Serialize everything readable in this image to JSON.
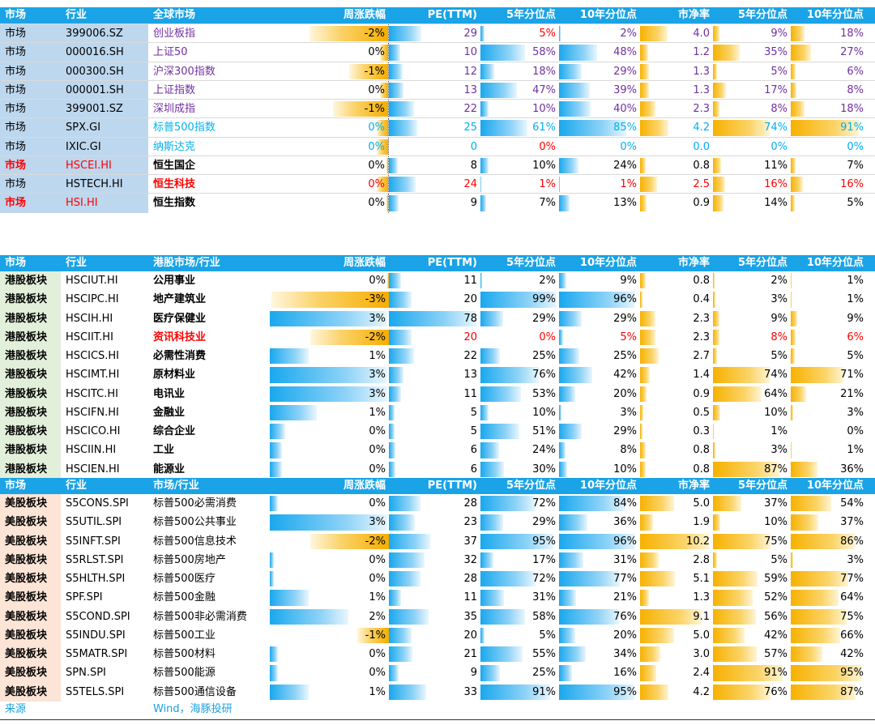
{
  "headers": [
    [
      "市场",
      "行业",
      "全球市场",
      "周涨跌幅",
      "PE(TTM)",
      "5年分位点",
      "10年分位点",
      "市净率",
      "5年分位点",
      "10年分位点"
    ],
    [
      "市场",
      "行业",
      "港股市场/行业",
      "周涨跌幅",
      "PE(TTM)",
      "5年分位点",
      "10年分位点",
      "市净率",
      "5年分位点",
      "10年分位点"
    ],
    [
      "市场",
      "行业",
      "市场/行业",
      "周涨跌幅",
      "PE(TTM)",
      "5年分位点",
      "10年分位点",
      "市净率",
      "5年分位点",
      "10年分位点"
    ]
  ],
  "colors": {
    "header_bg": "#1aa3e6",
    "market_col1_bg": "#bdd7ee",
    "hk_col1_bg": "#e2efda",
    "us_col1_bg": "#fce4d6",
    "purple_text": "#7030a0",
    "cyan_text": "#00b0f0",
    "red_text": "#ff0000",
    "bar_blue": "#19a8ee",
    "bar_yellow": "#f7b100"
  },
  "sections": [
    {
      "col1_bg": "#bdd7ee",
      "rows": [
        {
          "market": "市场",
          "code": "399006.SZ",
          "name": "创业板指",
          "style": "purple",
          "chg": "-2%",
          "chg_v": -2,
          "pe": "29",
          "pe_v": 29,
          "p5": "5%",
          "p5_v": 5,
          "p10": "2%",
          "p10_v": 2,
          "pb": "4.0",
          "pb_v": 4.0,
          "pb5": "9%",
          "pb5_v": 9,
          "pb10": "18%",
          "pb10_v": 18,
          "p5_red": true
        },
        {
          "market": "市场",
          "code": "000016.SH",
          "name": "上证50",
          "style": "purple",
          "chg": "0%",
          "chg_v": -0.2,
          "pe": "10",
          "pe_v": 10,
          "p5": "58%",
          "p5_v": 58,
          "p10": "48%",
          "p10_v": 48,
          "pb": "1.2",
          "pb_v": 1.2,
          "pb5": "35%",
          "pb5_v": 35,
          "pb10": "27%",
          "pb10_v": 27
        },
        {
          "market": "市场",
          "code": "000300.SH",
          "name": "沪深300指数",
          "style": "purple",
          "chg": "-1%",
          "chg_v": -1,
          "pe": "12",
          "pe_v": 12,
          "p5": "18%",
          "p5_v": 18,
          "p10": "29%",
          "p10_v": 29,
          "pb": "1.3",
          "pb_v": 1.3,
          "pb5": "5%",
          "pb5_v": 5,
          "pb10": "6%",
          "pb10_v": 6
        },
        {
          "market": "市场",
          "code": "000001.SH",
          "name": "上证指数",
          "style": "purple",
          "chg": "0%",
          "chg_v": -0.2,
          "pe": "13",
          "pe_v": 13,
          "p5": "47%",
          "p5_v": 47,
          "p10": "39%",
          "p10_v": 39,
          "pb": "1.3",
          "pb_v": 1.3,
          "pb5": "17%",
          "pb5_v": 17,
          "pb10": "8%",
          "pb10_v": 8
        },
        {
          "market": "市场",
          "code": "399001.SZ",
          "name": "深圳成指",
          "style": "purple",
          "chg": "-1%",
          "chg_v": -1.4,
          "pe": "22",
          "pe_v": 22,
          "p5": "10%",
          "p5_v": 10,
          "p10": "40%",
          "p10_v": 40,
          "pb": "2.3",
          "pb_v": 2.3,
          "pb5": "8%",
          "pb5_v": 8,
          "pb10": "18%",
          "pb10_v": 18
        },
        {
          "market": "市场",
          "code": "SPX.GI",
          "name": "标普500指数",
          "style": "cyan",
          "chg": "0%",
          "chg_v": -0.3,
          "pe": "25",
          "pe_v": 25,
          "p5": "61%",
          "p5_v": 61,
          "p10": "85%",
          "p10_v": 85,
          "pb": "4.2",
          "pb_v": 4.2,
          "pb5": "74%",
          "pb5_v": 74,
          "pb10": "91%",
          "pb10_v": 91
        },
        {
          "market": "市场",
          "code": "IXIC.GI",
          "name": "纳斯达克",
          "style": "cyan",
          "chg": "0%",
          "chg_v": -0.3,
          "pe": "0",
          "pe_v": 0,
          "p5": "0%",
          "p5_v": 0,
          "p10": "0%",
          "p10_v": 0,
          "pb": "0.0",
          "pb_v": 0,
          "pb5": "0%",
          "pb5_v": 0,
          "pb10": "0%",
          "pb10_v": 0,
          "p5_red": true
        },
        {
          "market": "市场",
          "code": "HSCEI.HI",
          "name": "恒生国企",
          "style": "black",
          "red_left": true,
          "chg": "0%",
          "chg_v": 0,
          "pe": "8",
          "pe_v": 8,
          "p5": "10%",
          "p5_v": 10,
          "p10": "24%",
          "p10_v": 24,
          "pb": "0.8",
          "pb_v": 0.8,
          "pb5": "11%",
          "pb5_v": 11,
          "pb10": "7%",
          "pb10_v": 7
        },
        {
          "market": "市场",
          "code": "HSTECH.HI",
          "name": "恒生科技",
          "style": "red",
          "chg": "0%",
          "chg_v": -0.3,
          "pe": "24",
          "pe_v": 24,
          "p5": "1%",
          "p5_v": 1,
          "p10": "1%",
          "p10_v": 1,
          "pb": "2.5",
          "pb_v": 2.5,
          "pb5": "16%",
          "pb5_v": 16,
          "pb10": "16%",
          "pb10_v": 16,
          "red_vals": true
        },
        {
          "market": "市场",
          "code": "HSI.HI",
          "name": "恒生指数",
          "style": "black",
          "red_left": true,
          "chg": "0%",
          "chg_v": 0,
          "pe": "9",
          "pe_v": 9,
          "p5": "7%",
          "p5_v": 7,
          "p10": "13%",
          "p10_v": 13,
          "pb": "0.9",
          "pb_v": 0.9,
          "pb5": "14%",
          "pb5_v": 14,
          "pb10": "5%",
          "pb10_v": 5
        }
      ]
    },
    {
      "col1_bg": "#e2efda",
      "rows": [
        {
          "market": "港股板块",
          "code": "HSCIUT.HI",
          "name": "公用事业",
          "style": "black",
          "chg": "0%",
          "chg_v": 0,
          "pe": "11",
          "pe_v": 11,
          "p5": "2%",
          "p5_v": 2,
          "p10": "9%",
          "p10_v": 9,
          "pb": "0.8",
          "pb_v": 0.8,
          "pb5": "2%",
          "pb5_v": 2,
          "pb10": "1%",
          "pb10_v": 1
        },
        {
          "market": "港股板块",
          "code": "HSCIPC.HI",
          "name": "地产建筑业",
          "style": "black",
          "chg": "-3%",
          "chg_v": -3,
          "pe": "20",
          "pe_v": 20,
          "p5": "99%",
          "p5_v": 99,
          "p10": "96%",
          "p10_v": 96,
          "pb": "0.4",
          "pb_v": 0.4,
          "pb5": "3%",
          "pb5_v": 3,
          "pb10": "1%",
          "pb10_v": 1
        },
        {
          "market": "港股板块",
          "code": "HSCIH.HI",
          "name": "医疗保健业",
          "style": "black",
          "chg": "3%",
          "chg_v": 3,
          "pe": "78",
          "pe_v": 78,
          "p5": "29%",
          "p5_v": 29,
          "p10": "29%",
          "p10_v": 29,
          "pb": "2.3",
          "pb_v": 2.3,
          "pb5": "9%",
          "pb5_v": 9,
          "pb10": "9%",
          "pb10_v": 9
        },
        {
          "market": "港股板块",
          "code": "HSCIIT.HI",
          "name": "资讯科技业",
          "style": "red",
          "chg": "-2%",
          "chg_v": -2,
          "pe": "20",
          "pe_v": 20,
          "p5": "0%",
          "p5_v": 0,
          "p10": "5%",
          "p10_v": 5,
          "pb": "2.3",
          "pb_v": 2.3,
          "pb5": "8%",
          "pb5_v": 8,
          "pb10": "6%",
          "pb10_v": 6,
          "red_vals": true
        },
        {
          "market": "港股板块",
          "code": "HSCICS.HI",
          "name": "必需性消费",
          "style": "black",
          "chg": "1%",
          "chg_v": 1,
          "pe": "22",
          "pe_v": 22,
          "p5": "25%",
          "p5_v": 25,
          "p10": "25%",
          "p10_v": 25,
          "pb": "2.7",
          "pb_v": 2.7,
          "pb5": "5%",
          "pb5_v": 5,
          "pb10": "5%",
          "pb10_v": 5
        },
        {
          "market": "港股板块",
          "code": "HSCIMT.HI",
          "name": "原材料业",
          "style": "black",
          "chg": "3%",
          "chg_v": 3,
          "pe": "13",
          "pe_v": 13,
          "p5": "76%",
          "p5_v": 76,
          "p10": "42%",
          "p10_v": 42,
          "pb": "1.4",
          "pb_v": 1.4,
          "pb5": "74%",
          "pb5_v": 74,
          "pb10": "71%",
          "pb10_v": 71
        },
        {
          "market": "港股板块",
          "code": "HSCITC.HI",
          "name": "电讯业",
          "style": "black",
          "chg": "3%",
          "chg_v": 3,
          "pe": "11",
          "pe_v": 11,
          "p5": "53%",
          "p5_v": 53,
          "p10": "20%",
          "p10_v": 20,
          "pb": "0.9",
          "pb_v": 0.9,
          "pb5": "64%",
          "pb5_v": 64,
          "pb10": "21%",
          "pb10_v": 21
        },
        {
          "market": "港股板块",
          "code": "HSCIFN.HI",
          "name": "金融业",
          "style": "black",
          "chg": "1%",
          "chg_v": 1.2,
          "pe": "5",
          "pe_v": 5,
          "p5": "10%",
          "p5_v": 10,
          "p10": "3%",
          "p10_v": 3,
          "pb": "0.5",
          "pb_v": 0.5,
          "pb5": "10%",
          "pb5_v": 10,
          "pb10": "3%",
          "pb10_v": 3
        },
        {
          "market": "港股板块",
          "code": "HSCICO.HI",
          "name": "综合企业",
          "style": "black",
          "chg": "0%",
          "chg_v": 0.4,
          "pe": "5",
          "pe_v": 5,
          "p5": "51%",
          "p5_v": 51,
          "p10": "29%",
          "p10_v": 29,
          "pb": "0.3",
          "pb_v": 0.3,
          "pb5": "1%",
          "pb5_v": 1,
          "pb10": "0%",
          "pb10_v": 0
        },
        {
          "market": "港股板块",
          "code": "HSCIIN.HI",
          "name": "工业",
          "style": "black",
          "chg": "0%",
          "chg_v": 0.3,
          "pe": "6",
          "pe_v": 6,
          "p5": "24%",
          "p5_v": 24,
          "p10": "8%",
          "p10_v": 8,
          "pb": "0.8",
          "pb_v": 0.8,
          "pb5": "3%",
          "pb5_v": 3,
          "pb10": "1%",
          "pb10_v": 1
        },
        {
          "market": "港股板块",
          "code": "HSCIEN.HI",
          "name": "能源业",
          "style": "black",
          "chg": "0%",
          "chg_v": 0.3,
          "pe": "6",
          "pe_v": 6,
          "p5": "30%",
          "p5_v": 30,
          "p10": "10%",
          "p10_v": 10,
          "pb": "0.8",
          "pb_v": 0.8,
          "pb5": "87%",
          "pb5_v": 87,
          "pb10": "36%",
          "pb10_v": 36
        }
      ]
    },
    {
      "col1_bg": "#fce4d6",
      "rows": [
        {
          "market": "美股板块",
          "code": "S5CONS.SPI",
          "name": "标普500必需消费",
          "style": "plain",
          "chg": "0%",
          "chg_v": 0.2,
          "pe": "28",
          "pe_v": 28,
          "p5": "72%",
          "p5_v": 72,
          "p10": "84%",
          "p10_v": 84,
          "pb": "5.0",
          "pb_v": 5.0,
          "pb5": "37%",
          "pb5_v": 37,
          "pb10": "54%",
          "pb10_v": 54
        },
        {
          "market": "美股板块",
          "code": "S5UTIL.SPI",
          "name": "标普500公共事业",
          "style": "plain",
          "chg": "3%",
          "chg_v": 3,
          "pe": "23",
          "pe_v": 23,
          "p5": "29%",
          "p5_v": 29,
          "p10": "36%",
          "p10_v": 36,
          "pb": "1.9",
          "pb_v": 1.9,
          "pb5": "10%",
          "pb5_v": 10,
          "pb10": "37%",
          "pb10_v": 37
        },
        {
          "market": "美股板块",
          "code": "S5INFT.SPI",
          "name": "标普500信息技术",
          "style": "plain",
          "chg": "-2%",
          "chg_v": -2,
          "pe": "37",
          "pe_v": 37,
          "p5": "95%",
          "p5_v": 95,
          "p10": "96%",
          "p10_v": 96,
          "pb": "10.2",
          "pb_v": 10.2,
          "pb5": "75%",
          "pb5_v": 75,
          "pb10": "86%",
          "pb10_v": 86
        },
        {
          "market": "美股板块",
          "code": "S5RLST.SPI",
          "name": "标普500房地产",
          "style": "plain",
          "chg": "0%",
          "chg_v": 0.1,
          "pe": "32",
          "pe_v": 32,
          "p5": "17%",
          "p5_v": 17,
          "p10": "31%",
          "p10_v": 31,
          "pb": "2.8",
          "pb_v": 2.8,
          "pb5": "5%",
          "pb5_v": 5,
          "pb10": "3%",
          "pb10_v": 3
        },
        {
          "market": "美股板块",
          "code": "S5HLTH.SPI",
          "name": "标普500医疗",
          "style": "plain",
          "chg": "0%",
          "chg_v": 0.1,
          "pe": "28",
          "pe_v": 28,
          "p5": "72%",
          "p5_v": 72,
          "p10": "77%",
          "p10_v": 77,
          "pb": "5.1",
          "pb_v": 5.1,
          "pb5": "59%",
          "pb5_v": 59,
          "pb10": "77%",
          "pb10_v": 77
        },
        {
          "market": "美股板块",
          "code": "SPF.SPI",
          "name": "标普500金融",
          "style": "plain",
          "chg": "1%",
          "chg_v": 1,
          "pe": "11",
          "pe_v": 11,
          "p5": "31%",
          "p5_v": 31,
          "p10": "21%",
          "p10_v": 21,
          "pb": "1.3",
          "pb_v": 1.3,
          "pb5": "52%",
          "pb5_v": 52,
          "pb10": "64%",
          "pb10_v": 64
        },
        {
          "market": "美股板块",
          "code": "S5COND.SPI",
          "name": "标普500非必需消费",
          "style": "plain",
          "chg": "2%",
          "chg_v": 2,
          "pe": "35",
          "pe_v": 35,
          "p5": "58%",
          "p5_v": 58,
          "p10": "76%",
          "p10_v": 76,
          "pb": "9.1",
          "pb_v": 9.1,
          "pb5": "56%",
          "pb5_v": 56,
          "pb10": "75%",
          "pb10_v": 75
        },
        {
          "market": "美股板块",
          "code": "S5INDU.SPI",
          "name": "标普500工业",
          "style": "plain",
          "chg": "-1%",
          "chg_v": -0.8,
          "pe": "20",
          "pe_v": 20,
          "p5": "5%",
          "p5_v": 5,
          "p10": "20%",
          "p10_v": 20,
          "pb": "5.0",
          "pb_v": 5.0,
          "pb5": "42%",
          "pb5_v": 42,
          "pb10": "66%",
          "pb10_v": 66
        },
        {
          "market": "美股板块",
          "code": "S5MATR.SPI",
          "name": "标普500材料",
          "style": "plain",
          "chg": "0%",
          "chg_v": 0.2,
          "pe": "21",
          "pe_v": 21,
          "p5": "55%",
          "p5_v": 55,
          "p10": "34%",
          "p10_v": 34,
          "pb": "3.0",
          "pb_v": 3.0,
          "pb5": "57%",
          "pb5_v": 57,
          "pb10": "42%",
          "pb10_v": 42
        },
        {
          "market": "美股板块",
          "code": "SPN.SPI",
          "name": "标普500能源",
          "style": "plain",
          "chg": "0%",
          "chg_v": 0.2,
          "pe": "9",
          "pe_v": 9,
          "p5": "25%",
          "p5_v": 25,
          "p10": "16%",
          "p10_v": 16,
          "pb": "2.4",
          "pb_v": 2.4,
          "pb5": "91%",
          "pb5_v": 91,
          "pb10": "95%",
          "pb10_v": 95
        },
        {
          "market": "美股板块",
          "code": "S5TELS.SPI",
          "name": "标普500通信设备",
          "style": "plain",
          "chg": "1%",
          "chg_v": 1,
          "pe": "33",
          "pe_v": 33,
          "p5": "91%",
          "p5_v": 91,
          "p10": "95%",
          "p10_v": 95,
          "pb": "4.2",
          "pb_v": 4.2,
          "pb5": "76%",
          "pb5_v": 76,
          "pb10": "87%",
          "pb10_v": 87
        }
      ]
    }
  ],
  "footer": {
    "source_label": "来源",
    "source_value": "Wind，海豚投研"
  }
}
